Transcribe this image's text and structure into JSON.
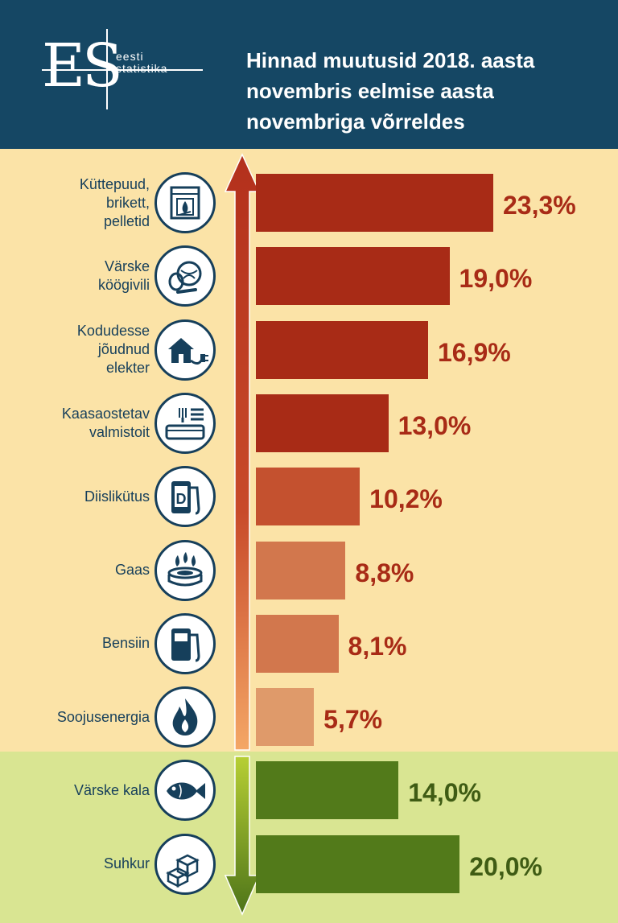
{
  "header": {
    "logo_mark": "ES",
    "logo_line1": "eesti",
    "logo_line2": "statistika",
    "title_lines": [
      "Hinnad muutusid 2018. aasta",
      "novembris eelmise aasta",
      "novembriga võrreldes"
    ]
  },
  "colors": {
    "header_bg": "#154764",
    "increase_bg": "#fbe3a7",
    "decrease_bg": "#d9e592",
    "increase_value_text": "#a82b16",
    "decrease_value_text": "#3f5c14",
    "label_text": "#163f5b"
  },
  "chart_data": {
    "type": "bar",
    "orientation": "horizontal",
    "unit": "%",
    "categories": [
      "Küttepuud, brikett, pelletid",
      "Värske köögivili",
      "Kodudesse jõudnud elekter",
      "Kaasaostetav valmistoit",
      "Diislikütus",
      "Gaas",
      "Bensiin",
      "Soojusenergia",
      "Värske kala",
      "Suhkur"
    ],
    "values": [
      23.3,
      19.0,
      16.9,
      13.0,
      10.2,
      8.8,
      8.1,
      5.7,
      -14.0,
      -20.0
    ],
    "items": [
      {
        "label_lines": [
          "Küttepuud,",
          "brikett,",
          "pelletid"
        ],
        "value": 23.3,
        "value_label": "23,3%",
        "direction": "increase",
        "color": "#a82b16",
        "icon": "fireplace-icon"
      },
      {
        "label_lines": [
          "Värske",
          "köögivili"
        ],
        "value": 19.0,
        "value_label": "19,0%",
        "direction": "increase",
        "color": "#a82b16",
        "icon": "vegetables-icon"
      },
      {
        "label_lines": [
          "Kodudesse",
          "jõudnud",
          "elekter"
        ],
        "value": 16.9,
        "value_label": "16,9%",
        "direction": "increase",
        "color": "#a82b16",
        "icon": "house-plug-icon"
      },
      {
        "label_lines": [
          "Kaasaostetav",
          "valmistoit"
        ],
        "value": 13.0,
        "value_label": "13,0%",
        "direction": "increase",
        "color": "#a82b16",
        "icon": "takeaway-box-icon"
      },
      {
        "label_lines": [
          "Diislikütus"
        ],
        "value": 10.2,
        "value_label": "10,2%",
        "direction": "increase",
        "color": "#c4512f",
        "icon": "diesel-pump-icon"
      },
      {
        "label_lines": [
          "Gaas"
        ],
        "value": 8.8,
        "value_label": "8,8%",
        "direction": "increase",
        "color": "#d2774d",
        "icon": "gas-burner-icon"
      },
      {
        "label_lines": [
          "Bensiin"
        ],
        "value": 8.1,
        "value_label": "8,1%",
        "direction": "increase",
        "color": "#d2774d",
        "icon": "fuel-pump-icon"
      },
      {
        "label_lines": [
          "Soojusenergia"
        ],
        "value": 5.7,
        "value_label": "5,7%",
        "direction": "increase",
        "color": "#df9a6a",
        "icon": "flame-icon"
      },
      {
        "label_lines": [
          "Värske kala"
        ],
        "value": -14.0,
        "value_label": "14,0%",
        "direction": "decrease",
        "color": "#527a1a",
        "icon": "fish-icon"
      },
      {
        "label_lines": [
          "Suhkur"
        ],
        "value": -20.0,
        "value_label": "20,0%",
        "direction": "decrease",
        "color": "#527a1a",
        "icon": "sugar-cubes-icon"
      }
    ]
  }
}
